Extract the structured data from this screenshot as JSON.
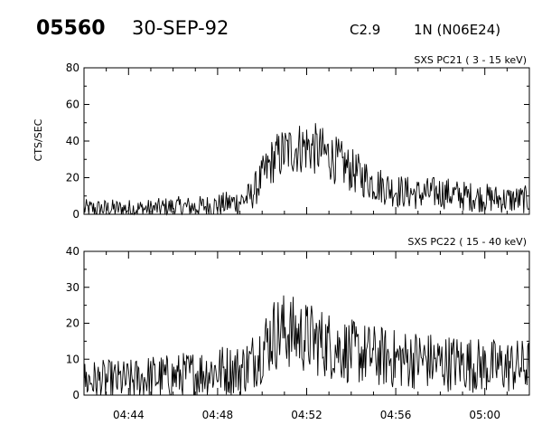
{
  "header": {
    "event_id": "05560",
    "date": "30-SEP-92",
    "flare_class": "C2.9",
    "flare_location": "1N (N06E24)"
  },
  "chart_data": [
    {
      "type": "line",
      "title": "SXS PC21 (  3 - 15 keV)",
      "ylabel": "CTS/SEC",
      "xlabel": "",
      "xlim": [
        "04:42:00",
        "05:02:00"
      ],
      "ylim": [
        0,
        80
      ],
      "yticks": [
        0,
        20,
        40,
        60,
        80
      ],
      "xticks": [
        "04:44",
        "04:48",
        "04:52",
        "04:56",
        "05:00"
      ],
      "grid": false,
      "series": [
        {
          "x": [
            "04:42:00",
            "04:43:00",
            "04:44:00",
            "04:45:00",
            "04:46:00",
            "04:47:00",
            "04:48:00",
            "04:49:00",
            "04:49:30",
            "04:50:00",
            "04:50:30",
            "04:51:00",
            "04:51:30",
            "04:52:00",
            "04:52:30",
            "04:53:00",
            "04:53:30",
            "04:54:00",
            "04:55:00",
            "04:56:00",
            "04:57:00",
            "04:58:00",
            "04:59:00",
            "05:00:00",
            "05:01:00",
            "05:02:00"
          ],
          "values": [
            3,
            3,
            3,
            3,
            4,
            4,
            5,
            7,
            10,
            20,
            30,
            34,
            36,
            37,
            35,
            32,
            28,
            24,
            17,
            13,
            11,
            12,
            10,
            9,
            8,
            8
          ]
        }
      ]
    },
    {
      "type": "line",
      "title": "SXS PC22  ( 15 - 40 keV)",
      "ylabel": "",
      "xlabel": "",
      "xlim": [
        "04:42:00",
        "05:02:00"
      ],
      "ylim": [
        0,
        40
      ],
      "yticks": [
        0,
        10,
        20,
        30,
        40
      ],
      "xticks": [
        "04:44",
        "04:48",
        "04:52",
        "04:56",
        "05:00"
      ],
      "grid": false,
      "series": [
        {
          "x": [
            "04:42:00",
            "04:43:00",
            "04:44:00",
            "04:45:00",
            "04:46:00",
            "04:47:00",
            "04:48:00",
            "04:49:00",
            "04:49:30",
            "04:50:00",
            "04:50:30",
            "04:51:00",
            "04:51:30",
            "04:52:00",
            "04:52:30",
            "04:53:00",
            "04:53:30",
            "04:54:00",
            "04:55:00",
            "04:56:00",
            "04:57:00",
            "04:58:00",
            "04:59:00",
            "05:00:00",
            "05:01:00",
            "05:02:00"
          ],
          "values": [
            4,
            4,
            4,
            5,
            5,
            6,
            7,
            7,
            9,
            13,
            17,
            18,
            17,
            16,
            15,
            14,
            13,
            12,
            11,
            10,
            10,
            9,
            9,
            8,
            8,
            8
          ]
        }
      ]
    }
  ]
}
